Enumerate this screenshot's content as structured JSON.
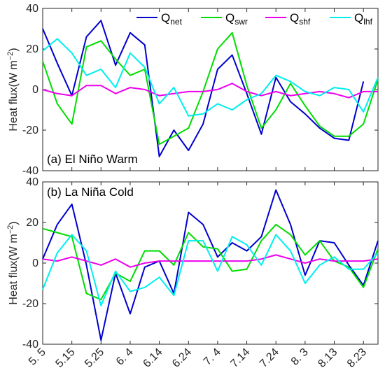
{
  "chart_data": {
    "type": "line",
    "x": [
      "5.5",
      "5.10",
      "5.15",
      "5.20",
      "5.25",
      "5.30",
      "6.4",
      "6.9",
      "6.14",
      "6.19",
      "6.24",
      "6.29",
      "7.4",
      "7.9",
      "7.14",
      "7.19",
      "7.24",
      "7.29",
      "8.3",
      "8.8",
      "8.13",
      "8.18",
      "8.23",
      "8.28"
    ],
    "xtick_labels": [
      "5. 5",
      "5.15",
      "5.25",
      "6. 4",
      "6.14",
      "6.24",
      "7. 4",
      "7.14",
      "7.24",
      "8. 3",
      "8.13",
      "8.23"
    ],
    "ylabel": "Heat flux(W m",
    "ylabel_sup": "−2",
    "ylabel_close": ")",
    "ylim": [
      -40,
      40
    ],
    "yticks": [
      -40,
      -20,
      0,
      20,
      40
    ],
    "legend": [
      {
        "main": "Q",
        "sub": "net",
        "color": "#0000CD"
      },
      {
        "main": "Q",
        "sub": "swr",
        "color": "#00DD00"
      },
      {
        "main": "Q",
        "sub": "shf",
        "color": "#EE00EE"
      },
      {
        "main": "Q",
        "sub": "lhf",
        "color": "#00EEEE"
      }
    ],
    "legend_position": "top-right",
    "panels": [
      {
        "label": "(a) El Niño Warm",
        "series": [
          {
            "name": "Qnet",
            "color": "#0000CD",
            "values": [
              30,
              13,
              -3,
              26,
              34,
              12,
              28,
              22,
              -33,
              -20,
              -30,
              -17,
              10,
              17,
              -2,
              -22,
              6,
              -6,
              -12,
              -19,
              -24,
              -25,
              4,
              null
            ]
          },
          {
            "name": "Qswr",
            "color": "#00DD00",
            "values": [
              14,
              -7,
              -17,
              21,
              24,
              15,
              7,
              10,
              -27,
              -23,
              -19,
              -1,
              20,
              28,
              2,
              -19,
              -10,
              3,
              -8,
              -18,
              -23,
              -23,
              -17,
              5
            ]
          },
          {
            "name": "Qshf",
            "color": "#EE00EE",
            "values": [
              0,
              -2,
              -3,
              2,
              2,
              -2,
              1,
              0,
              -3,
              -2,
              -1,
              -1,
              0,
              3,
              -1,
              -3,
              -1,
              -3,
              -2,
              -1,
              -2,
              -4,
              -1,
              -1
            ]
          },
          {
            "name": "Qlhf",
            "color": "#00EEEE",
            "values": [
              19,
              25,
              18,
              7,
              10,
              1,
              18,
              11,
              -7,
              1,
              -13,
              -12,
              -7,
              -10,
              -5,
              -2,
              7,
              4,
              -1,
              -3,
              1,
              0,
              -11,
              6
            ]
          }
        ]
      },
      {
        "label": "(b) La Niña Cold",
        "series": [
          {
            "name": "Qnet",
            "color": "#0000CD",
            "values": [
              2,
              19,
              29,
              -1,
              -38,
              -5,
              -25,
              -2,
              1,
              -15,
              25,
              19,
              3,
              10,
              6,
              13,
              36,
              19,
              -6,
              11,
              10,
              -1,
              -11,
              11
            ]
          },
          {
            "name": "Qswr",
            "color": "#00DD00",
            "values": [
              17,
              15,
              13,
              -15,
              -18,
              -5,
              -9,
              6,
              6,
              -1,
              15,
              8,
              7,
              -4,
              -3,
              11,
              19,
              14,
              4,
              11,
              1,
              -2,
              -12,
              7
            ]
          },
          {
            "name": "Qshf",
            "color": "#EE00EE",
            "values": [
              2,
              1,
              3,
              1,
              -1,
              2,
              -2,
              0,
              1,
              1,
              1,
              1,
              1,
              1,
              1,
              2,
              4,
              2,
              0,
              2,
              1,
              1,
              1,
              2
            ]
          },
          {
            "name": "Qlhf",
            "color": "#00EEEE",
            "values": [
              -13,
              5,
              14,
              6,
              -21,
              -4,
              -14,
              -12,
              -7,
              -16,
              11,
              11,
              -4,
              13,
              9,
              -1,
              14,
              6,
              -10,
              -1,
              3,
              -3,
              -3,
              5
            ]
          }
        ]
      }
    ]
  }
}
